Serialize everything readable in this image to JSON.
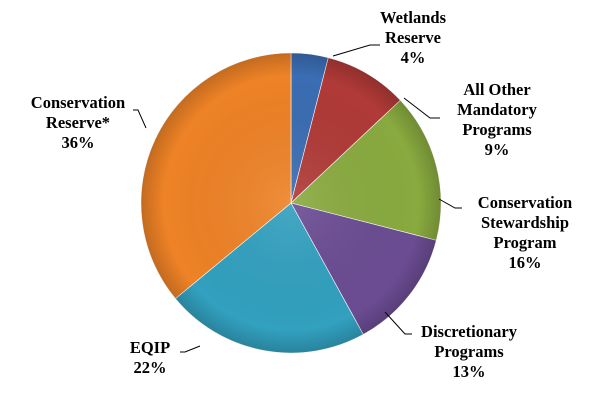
{
  "chart_data": {
    "type": "pie",
    "title": "",
    "slices": [
      {
        "name_lines": [
          "Wetlands",
          "Reserve"
        ],
        "pct_label": "4%",
        "value": 4,
        "color": "#3b6db3"
      },
      {
        "name_lines": [
          "All Other",
          "Mandatory",
          "Programs"
        ],
        "pct_label": "9%",
        "value": 9,
        "color": "#b03a37"
      },
      {
        "name_lines": [
          "Conservation",
          "Stewardship",
          "Program"
        ],
        "pct_label": "16%",
        "value": 16,
        "color": "#89aa3f"
      },
      {
        "name_lines": [
          "Discretionary",
          "Programs"
        ],
        "pct_label": "13%",
        "value": 13,
        "color": "#6b4c93"
      },
      {
        "name_lines": [
          "EQIP"
        ],
        "pct_label": "22%",
        "value": 22,
        "color": "#32a0bf"
      },
      {
        "name_lines": [
          "Conservation",
          "Reserve*"
        ],
        "pct_label": "36%",
        "value": 36,
        "color": "#ee8226"
      }
    ],
    "start_angle_deg": 0,
    "direction": "clockwise",
    "legend": "none"
  }
}
